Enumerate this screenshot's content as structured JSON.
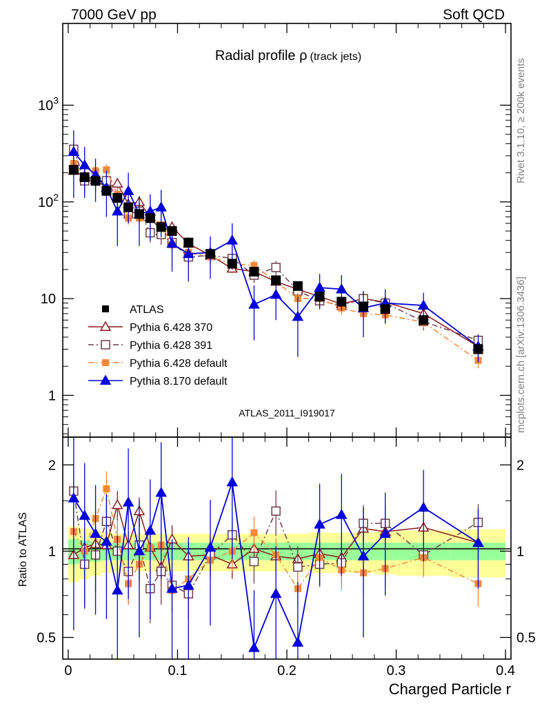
{
  "header": {
    "left": "7000 GeV pp",
    "right": "Soft QCD",
    "rivet_note": "Rivet 3.1.10, ≥ 200k events",
    "mcplots_note": "mcplots.cern.ch [arXiv:1306.3436]",
    "analysis_id": "ATLAS_2011_I919017"
  },
  "chart_data": [
    {
      "type": "scatter",
      "panel": "main",
      "title": "Radial profile ρ (track jets)",
      "title_main": "Radial profile ρ",
      "title_sub": "(track jets)",
      "xlabel": "Charged Particle r",
      "ylabel": "",
      "yscale": "log",
      "xlim": [
        -0.005,
        0.405
      ],
      "ylim": [
        0.37,
        7000
      ],
      "x_ticks": [
        0,
        0.1,
        0.2,
        0.3,
        0.4
      ],
      "x_tick_labels": [
        "0",
        "0.1",
        "0.2",
        "0.3",
        "0.4"
      ],
      "y_ticks": [
        1,
        10,
        100,
        1000
      ],
      "y_tick_labels": [
        "1",
        "10",
        "10²",
        "10³"
      ],
      "legend_position": "lower-left",
      "x": [
        0.005,
        0.015,
        0.025,
        0.035,
        0.045,
        0.055,
        0.065,
        0.075,
        0.085,
        0.095,
        0.11,
        0.13,
        0.15,
        0.17,
        0.19,
        0.21,
        0.23,
        0.25,
        0.27,
        0.29,
        0.325,
        0.375
      ],
      "series": [
        {
          "name": "ATLAS",
          "color": "#000000",
          "marker": "square-filled",
          "line": "none",
          "values": [
            215,
            180,
            165,
            130,
            110,
            88,
            75,
            68,
            55,
            50,
            38,
            29,
            23,
            19,
            15.5,
            13.5,
            10.5,
            9.3,
            8.3,
            7.8,
            6.0,
            3.0
          ]
        },
        {
          "name": "Pythia 6.428 370",
          "color": "#8b1a1a",
          "marker": "triangle-open",
          "line": "solid",
          "values": [
            210,
            185,
            170,
            140,
            155,
            95,
            100,
            70,
            50,
            55,
            37,
            28,
            20.5,
            19,
            15,
            12.5,
            10.5,
            8.8,
            10,
            9.2,
            7.0,
            3.2
          ],
          "errors": [
            20,
            15,
            15,
            15,
            18,
            10,
            12,
            8,
            6,
            6,
            4,
            3,
            2,
            2,
            1.5,
            1.3,
            1,
            0.9,
            1,
            0.9,
            0.7,
            0.4
          ]
        },
        {
          "name": "Pythia 6.428 391",
          "color": "#6b3d4a",
          "marker": "square-open",
          "line": "dashdot",
          "values": [
            350,
            165,
            165,
            165,
            110,
            75,
            80,
            48,
            46,
            38,
            27,
            28,
            26,
            17.5,
            21,
            12,
            9.5,
            8.5,
            10,
            9,
            5.8,
            3.7
          ],
          "errors": [
            80,
            40,
            40,
            35,
            25,
            15,
            18,
            10,
            10,
            7,
            5,
            5,
            4,
            3,
            3.5,
            2,
            1.8,
            1.5,
            1.8,
            1.6,
            1.1,
            0.6
          ]
        },
        {
          "name": "Pythia 6.428 default",
          "color": "#f5883a",
          "marker": "square-filled",
          "line": "dashdot",
          "values": [
            250,
            180,
            210,
            215,
            120,
            68,
            68,
            70,
            58,
            36,
            30,
            27,
            23,
            22,
            15,
            10,
            10,
            8,
            7,
            6.8,
            5.7,
            2.3
          ],
          "errors": [
            30,
            25,
            30,
            30,
            20,
            10,
            10,
            10,
            9,
            5,
            4,
            4,
            3,
            3,
            2,
            1.5,
            1.5,
            1.2,
            1,
            1,
            0.8,
            0.4
          ]
        },
        {
          "name": "Pythia 8.170 default",
          "color": "#0000dd",
          "marker": "triangle-filled",
          "line": "solid",
          "values": [
            330,
            240,
            190,
            140,
            80,
            130,
            75,
            80,
            88,
            37,
            29,
            30,
            40,
            8.7,
            11,
            6.5,
            13,
            12.5,
            8,
            9,
            8.5,
            3.2
          ],
          "errors": [
            220,
            130,
            90,
            70,
            45,
            70,
            40,
            40,
            45,
            18,
            14,
            14,
            20,
            5,
            5,
            4,
            5,
            5,
            4,
            3.5,
            3,
            1
          ]
        }
      ]
    },
    {
      "type": "scatter",
      "panel": "ratio",
      "xlabel": "Charged Particle r",
      "ylabel": "Ratio to ATLAS",
      "yscale": "log",
      "xlim": [
        -0.005,
        0.405
      ],
      "ylim": [
        0.42,
        2.5
      ],
      "y_ticks": [
        0.5,
        1,
        2
      ],
      "y_tick_labels": [
        "0.5",
        "1",
        "2"
      ],
      "reference_line": 1,
      "band_bin_edges": [
        0,
        0.01,
        0.02,
        0.03,
        0.04,
        0.05,
        0.06,
        0.07,
        0.08,
        0.09,
        0.1,
        0.12,
        0.14,
        0.16,
        0.18,
        0.2,
        0.22,
        0.24,
        0.26,
        0.28,
        0.3,
        0.35,
        0.4
      ],
      "band_stat_halfwidth": [
        0.1,
        0.09,
        0.08,
        0.07,
        0.07,
        0.07,
        0.07,
        0.07,
        0.07,
        0.07,
        0.07,
        0.07,
        0.07,
        0.07,
        0.07,
        0.07,
        0.07,
        0.07,
        0.07,
        0.07,
        0.07,
        0.07
      ],
      "band_total_halfwidth": [
        0.22,
        0.2,
        0.18,
        0.16,
        0.15,
        0.15,
        0.15,
        0.15,
        0.15,
        0.15,
        0.15,
        0.15,
        0.15,
        0.15,
        0.15,
        0.15,
        0.16,
        0.16,
        0.16,
        0.17,
        0.18,
        0.19
      ],
      "series": [
        {
          "name": "Pythia 6.428 370",
          "color": "#8b1a1a",
          "marker": "triangle-open",
          "line": "solid",
          "values": [
            0.97,
            1.03,
            1.06,
            1.05,
            1.45,
            1.05,
            1.38,
            1.03,
            0.88,
            1.1,
            0.96,
            0.97,
            0.9,
            1.02,
            0.96,
            0.94,
            0.98,
            0.95,
            1.2,
            1.17,
            1.21,
            1.07
          ],
          "errors": [
            0.1,
            0.1,
            0.1,
            0.12,
            0.17,
            0.12,
            0.16,
            0.13,
            0.12,
            0.13,
            0.12,
            0.12,
            0.1,
            0.11,
            0.1,
            0.1,
            0.1,
            0.1,
            0.12,
            0.12,
            0.12,
            0.13
          ]
        },
        {
          "name": "Pythia 6.428 391",
          "color": "#6b3d4a",
          "marker": "square-open",
          "line": "dashdot",
          "values": [
            1.62,
            0.9,
            0.97,
            1.27,
            1.0,
            0.85,
            1.05,
            0.74,
            0.85,
            0.76,
            0.71,
            0.97,
            1.14,
            0.92,
            1.38,
            0.88,
            0.9,
            0.91,
            1.25,
            1.25,
            0.97,
            1.26
          ],
          "errors": [
            0.4,
            0.25,
            0.25,
            0.3,
            0.25,
            0.2,
            0.25,
            0.18,
            0.2,
            0.15,
            0.13,
            0.15,
            0.18,
            0.15,
            0.25,
            0.15,
            0.15,
            0.15,
            0.2,
            0.2,
            0.15,
            0.2
          ]
        },
        {
          "name": "Pythia 6.428 default",
          "color": "#f5883a",
          "marker": "square-filled",
          "line": "dashdot",
          "values": [
            1.17,
            1.0,
            1.3,
            1.65,
            1.1,
            0.77,
            0.9,
            1.03,
            1.05,
            0.73,
            0.8,
            0.93,
            1.0,
            1.16,
            0.97,
            0.74,
            0.95,
            0.86,
            0.84,
            0.87,
            0.95,
            0.77
          ],
          "errors": [
            0.2,
            0.15,
            0.2,
            0.25,
            0.18,
            0.12,
            0.14,
            0.15,
            0.15,
            0.11,
            0.12,
            0.13,
            0.15,
            0.16,
            0.14,
            0.11,
            0.14,
            0.13,
            0.13,
            0.13,
            0.14,
            0.13
          ]
        },
        {
          "name": "Pythia 8.170 default",
          "color": "#0000dd",
          "marker": "triangle-filled",
          "line": "solid",
          "values": [
            1.53,
            1.33,
            1.15,
            1.08,
            0.73,
            1.48,
            1.0,
            1.18,
            1.6,
            0.74,
            0.76,
            1.03,
            1.74,
            0.46,
            0.71,
            0.48,
            1.24,
            1.34,
            0.96,
            1.15,
            1.42,
            1.07
          ],
          "errors": [
            1.0,
            0.7,
            0.55,
            0.5,
            0.4,
            0.8,
            0.5,
            0.6,
            0.8,
            0.36,
            0.36,
            0.48,
            0.8,
            0.27,
            0.33,
            0.3,
            0.48,
            0.52,
            0.46,
            0.45,
            0.5,
            0.33
          ]
        }
      ]
    }
  ]
}
